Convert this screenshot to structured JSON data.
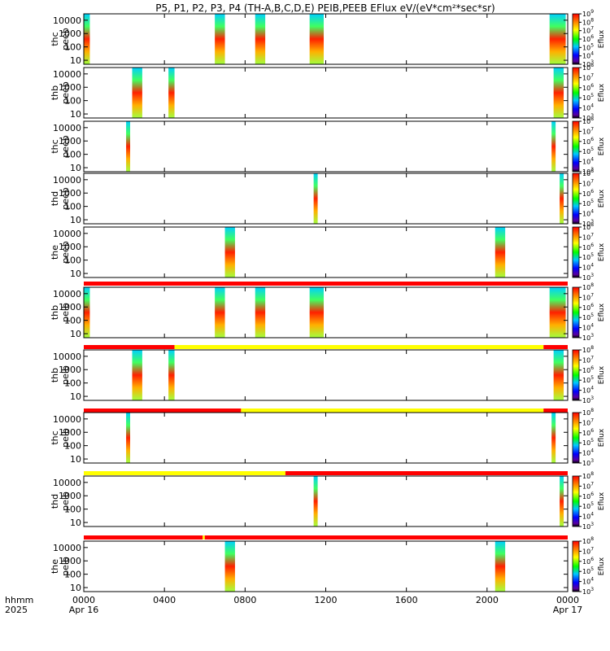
{
  "chart_data": {
    "type": "heatmap",
    "title": "P5, P1, P2, P3, P4 (TH-A,B,C,D,E) PEIB,PEEB EFlux eV/(eV*cm²*sec*sr)",
    "colorbar_label": "Eflux",
    "x_axis": {
      "unit_label": "hhmm",
      "year_label": "2025",
      "ticks": [
        "0000",
        "0400",
        "0800",
        "1200",
        "1600",
        "2000",
        "0000"
      ],
      "tick_hours": [
        0,
        4,
        8,
        12,
        16,
        20,
        24
      ],
      "date_labels": [
        "Apr 16",
        "Apr 17"
      ],
      "range_hours": [
        0,
        24
      ]
    },
    "y_ticks": [
      "10",
      "100",
      "1000",
      "10000"
    ],
    "y_tick_values": [
      10,
      100,
      1000,
      10000
    ],
    "ylim": [
      5,
      30000
    ],
    "y_scale": "log",
    "panels": [
      {
        "label": "thc\npeeb",
        "label_l1": "thc",
        "label_l2": "peeb",
        "cb_exps": [
          3,
          4,
          5,
          6,
          7,
          8,
          9
        ],
        "bursts": [
          [
            0,
            0.3
          ],
          [
            6.5,
            7.0
          ],
          [
            8.5,
            9.0
          ],
          [
            11.2,
            11.9
          ],
          [
            23.1,
            23.9
          ]
        ],
        "status_bar": null
      },
      {
        "label": "thb\npeeb",
        "label_l1": "thb",
        "label_l2": "peeb",
        "cb_exps": [
          3,
          4,
          5,
          6,
          7,
          8
        ],
        "bursts": [
          [
            2.4,
            2.9
          ],
          [
            4.2,
            4.5
          ],
          [
            23.3,
            23.8
          ]
        ],
        "status_bar": null
      },
      {
        "label": "thc\npeeb",
        "label_l1": "thc",
        "label_l2": "peeb",
        "cb_exps": [
          3,
          4,
          5,
          6,
          7,
          8
        ],
        "bursts": [
          [
            2.1,
            2.3
          ],
          [
            23.2,
            23.4
          ]
        ],
        "status_bar": null
      },
      {
        "label": "thd\npeeb",
        "label_l1": "thd",
        "label_l2": "peeb",
        "cb_exps": [
          3,
          4,
          5,
          6,
          7,
          8
        ],
        "bursts": [
          [
            11.4,
            11.6
          ],
          [
            23.6,
            23.8
          ]
        ],
        "status_bar": null
      },
      {
        "label": "the\npeeb",
        "label_l1": "the",
        "label_l2": "peeb",
        "cb_exps": [
          3,
          4,
          5,
          6,
          7,
          8
        ],
        "bursts": [
          [
            7.0,
            7.5
          ],
          [
            20.4,
            20.9
          ]
        ],
        "status_bar": null
      },
      {
        "label": "thb\npeib",
        "label_l1": "thb",
        "label_l2": "peib",
        "cb_exps": [
          3,
          4,
          5,
          6,
          7,
          8
        ],
        "bursts": [
          [
            0,
            0.3
          ],
          [
            6.5,
            7.0
          ],
          [
            8.5,
            9.0
          ],
          [
            11.2,
            11.9
          ],
          [
            23.1,
            23.9
          ]
        ],
        "status_bar": [
          {
            "from": 0,
            "to": 24,
            "color": "#ff0000"
          }
        ]
      },
      {
        "label": "thb\npeib",
        "label_l1": "thb",
        "label_l2": "peib",
        "cb_exps": [
          3,
          4,
          5,
          6,
          7,
          8
        ],
        "bursts": [
          [
            2.4,
            2.9
          ],
          [
            4.2,
            4.5
          ],
          [
            23.3,
            23.8
          ]
        ],
        "status_bar": [
          {
            "from": 0,
            "to": 4.5,
            "color": "#ff0000"
          },
          {
            "from": 4.5,
            "to": 22.8,
            "color": "#ffff00"
          },
          {
            "from": 22.8,
            "to": 24,
            "color": "#ff0000"
          }
        ]
      },
      {
        "label": "thc\npeib",
        "label_l1": "thc",
        "label_l2": "peib",
        "cb_exps": [
          3,
          4,
          5,
          6,
          7,
          8
        ],
        "bursts": [
          [
            2.1,
            2.3
          ],
          [
            23.2,
            23.4
          ]
        ],
        "status_bar": [
          {
            "from": 0,
            "to": 7.8,
            "color": "#ff0000"
          },
          {
            "from": 7.8,
            "to": 22.8,
            "color": "#ffff00"
          },
          {
            "from": 22.8,
            "to": 24,
            "color": "#ff0000"
          }
        ]
      },
      {
        "label": "thd\npeib",
        "label_l1": "thd",
        "label_l2": "peib",
        "cb_exps": [
          3,
          4,
          5,
          6,
          7,
          8
        ],
        "bursts": [
          [
            11.4,
            11.6
          ],
          [
            23.6,
            23.8
          ]
        ],
        "status_bar": [
          {
            "from": 0,
            "to": 10,
            "color": "#ffff00"
          },
          {
            "from": 10,
            "to": 24,
            "color": "#ff0000"
          }
        ]
      },
      {
        "label": "the\npeib",
        "label_l1": "the",
        "label_l2": "peib",
        "cb_exps": [
          3,
          4,
          5,
          6,
          7,
          8
        ],
        "bursts": [
          [
            7.0,
            7.5
          ],
          [
            20.4,
            20.9
          ]
        ],
        "status_bar": [
          {
            "from": 0,
            "to": 5.9,
            "color": "#ff0000"
          },
          {
            "from": 5.9,
            "to": 6.0,
            "color": "#ffff00"
          },
          {
            "from": 6.0,
            "to": 24,
            "color": "#ff0000"
          }
        ]
      }
    ]
  }
}
